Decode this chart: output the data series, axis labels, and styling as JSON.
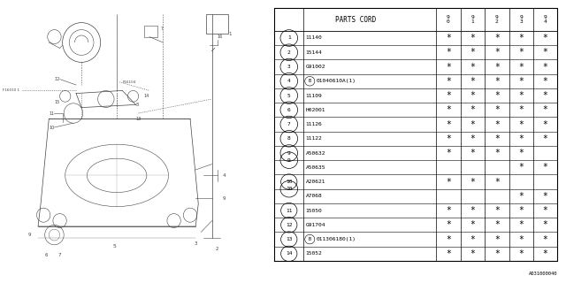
{
  "bg_color": "#ffffff",
  "line_color": "#444444",
  "table_header_cols": [
    "PARTS CORD",
    "9\n0",
    "9\n1",
    "9\n2",
    "9\n3",
    "9\n4"
  ],
  "rows": [
    {
      "num": "1",
      "circle_num": true,
      "prefix": "",
      "code": "11140",
      "stars": [
        true,
        true,
        true,
        true,
        true
      ]
    },
    {
      "num": "2",
      "circle_num": true,
      "prefix": "",
      "code": "15144",
      "stars": [
        true,
        true,
        true,
        true,
        true
      ]
    },
    {
      "num": "3",
      "circle_num": true,
      "prefix": "",
      "code": "G91002",
      "stars": [
        true,
        true,
        true,
        true,
        true
      ]
    },
    {
      "num": "4",
      "circle_num": true,
      "prefix": "B",
      "code": "01040610A(1)",
      "stars": [
        true,
        true,
        true,
        true,
        true
      ]
    },
    {
      "num": "5",
      "circle_num": true,
      "prefix": "",
      "code": "11109",
      "stars": [
        true,
        true,
        true,
        true,
        true
      ]
    },
    {
      "num": "6",
      "circle_num": true,
      "prefix": "",
      "code": "H02001",
      "stars": [
        true,
        true,
        true,
        true,
        true
      ]
    },
    {
      "num": "7",
      "circle_num": true,
      "prefix": "",
      "code": "11126",
      "stars": [
        true,
        true,
        true,
        true,
        true
      ]
    },
    {
      "num": "8",
      "circle_num": true,
      "prefix": "",
      "code": "11122",
      "stars": [
        true,
        true,
        true,
        true,
        true
      ]
    },
    {
      "num": "9",
      "circle_num": true,
      "prefix": "",
      "code": "A50632",
      "stars": [
        true,
        true,
        true,
        true,
        false
      ],
      "group_first": true,
      "group_id": "9"
    },
    {
      "num": "",
      "circle_num": false,
      "prefix": "",
      "code": "A50635",
      "stars": [
        false,
        false,
        false,
        true,
        true
      ],
      "group_id": "9"
    },
    {
      "num": "10",
      "circle_num": true,
      "prefix": "",
      "code": "A20621",
      "stars": [
        true,
        true,
        true,
        false,
        false
      ],
      "group_first": true,
      "group_id": "10"
    },
    {
      "num": "",
      "circle_num": false,
      "prefix": "",
      "code": "A7068",
      "stars": [
        false,
        false,
        false,
        true,
        true
      ],
      "group_id": "10"
    },
    {
      "num": "11",
      "circle_num": true,
      "prefix": "",
      "code": "15050",
      "stars": [
        true,
        true,
        true,
        true,
        true
      ]
    },
    {
      "num": "12",
      "circle_num": true,
      "prefix": "",
      "code": "G91704",
      "stars": [
        true,
        true,
        true,
        true,
        true
      ]
    },
    {
      "num": "13",
      "circle_num": true,
      "prefix": "B",
      "code": "011306180(1)",
      "stars": [
        true,
        true,
        true,
        true,
        true
      ]
    },
    {
      "num": "14",
      "circle_num": true,
      "prefix": "",
      "code": "15052",
      "stars": [
        true,
        true,
        true,
        true,
        true
      ]
    }
  ],
  "watermark": "A031000040"
}
